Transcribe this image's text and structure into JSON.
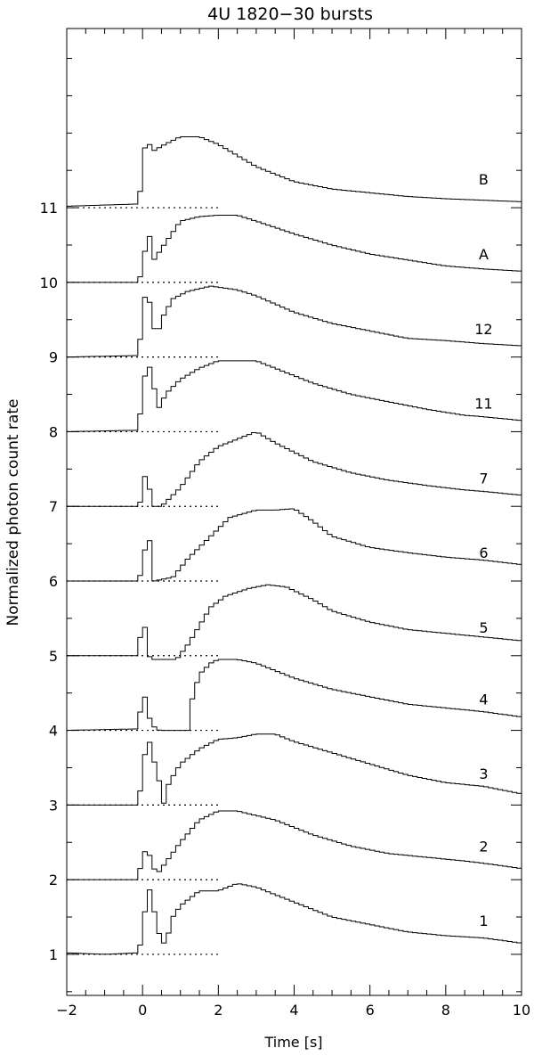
{
  "chart_data": {
    "type": "line",
    "title": "4U 1820−30 bursts",
    "xlabel": "Time [s]",
    "ylabel": "Normalized photon count rate",
    "xlim": [
      -2,
      10
    ],
    "ylim": [
      0.45,
      13.4
    ],
    "x_ticks": [
      -2,
      0,
      2,
      4,
      6,
      8,
      10
    ],
    "x_tick_labels": [
      "−2",
      "0",
      "2",
      "4",
      "6",
      "8",
      "10"
    ],
    "y_ticks": [
      1,
      2,
      3,
      4,
      5,
      6,
      7,
      8,
      9,
      10,
      11
    ],
    "y_tick_labels": [
      "1",
      "2",
      "3",
      "4",
      "5",
      "6",
      "7",
      "8",
      "9",
      "10",
      "11"
    ],
    "preburst_level_dotted": {
      "x_start": -2,
      "x_end": 2
    },
    "step": "histogram",
    "series": [
      {
        "name": "1",
        "baseline": 1,
        "label_pos": [
          9.0,
          1.45
        ],
        "points": [
          [
            -2,
            1.02
          ],
          [
            -1,
            1.0
          ],
          [
            -0.1,
            1.02
          ],
          [
            0.0,
            1.3
          ],
          [
            0.15,
            1.95
          ],
          [
            0.3,
            1.6
          ],
          [
            0.45,
            1.25
          ],
          [
            0.6,
            1.12
          ],
          [
            0.8,
            1.5
          ],
          [
            1.0,
            1.65
          ],
          [
            1.5,
            1.85
          ],
          [
            2.0,
            1.85
          ],
          [
            2.5,
            1.95
          ],
          [
            3.0,
            1.9
          ],
          [
            4.0,
            1.7
          ],
          [
            5.0,
            1.5
          ],
          [
            6.0,
            1.4
          ],
          [
            7.0,
            1.3
          ],
          [
            8.0,
            1.25
          ],
          [
            9.0,
            1.22
          ],
          [
            10.0,
            1.15
          ]
        ]
      },
      {
        "name": "2",
        "baseline": 2,
        "label_pos": [
          9.0,
          2.45
        ],
        "points": [
          [
            -2,
            2.0
          ],
          [
            -0.1,
            2.0
          ],
          [
            0.0,
            2.4
          ],
          [
            0.25,
            2.3
          ],
          [
            0.35,
            2.05
          ],
          [
            0.5,
            2.15
          ],
          [
            1.0,
            2.5
          ],
          [
            1.5,
            2.8
          ],
          [
            2.0,
            2.92
          ],
          [
            2.5,
            2.92
          ],
          [
            3.5,
            2.8
          ],
          [
            4.5,
            2.6
          ],
          [
            5.5,
            2.45
          ],
          [
            6.5,
            2.35
          ],
          [
            7.5,
            2.3
          ],
          [
            8.5,
            2.25
          ],
          [
            9.0,
            2.22
          ],
          [
            10.0,
            2.15
          ]
        ]
      },
      {
        "name": "3",
        "baseline": 3,
        "label_pos": [
          9.0,
          3.42
        ],
        "points": [
          [
            -2,
            3.0
          ],
          [
            -0.1,
            3.0
          ],
          [
            0.0,
            3.5
          ],
          [
            0.15,
            3.92
          ],
          [
            0.3,
            3.6
          ],
          [
            0.45,
            3.3
          ],
          [
            0.55,
            3.0
          ],
          [
            0.7,
            3.3
          ],
          [
            1.0,
            3.55
          ],
          [
            1.5,
            3.75
          ],
          [
            2.0,
            3.88
          ],
          [
            2.5,
            3.9
          ],
          [
            3.0,
            3.95
          ],
          [
            3.5,
            3.95
          ],
          [
            4.0,
            3.85
          ],
          [
            5.0,
            3.7
          ],
          [
            6.0,
            3.55
          ],
          [
            7.0,
            3.4
          ],
          [
            8.0,
            3.3
          ],
          [
            9.0,
            3.25
          ],
          [
            10.0,
            3.15
          ]
        ]
      },
      {
        "name": "4",
        "baseline": 4,
        "label_pos": [
          9.0,
          4.42
        ],
        "points": [
          [
            -2,
            4.0
          ],
          [
            -0.1,
            4.02
          ],
          [
            0.0,
            4.62
          ],
          [
            0.15,
            4.2
          ],
          [
            0.3,
            4.05
          ],
          [
            0.45,
            4.0
          ],
          [
            1.2,
            4.0
          ],
          [
            1.3,
            4.4
          ],
          [
            1.5,
            4.75
          ],
          [
            1.8,
            4.9
          ],
          [
            2.0,
            4.95
          ],
          [
            2.5,
            4.95
          ],
          [
            3.0,
            4.9
          ],
          [
            4.0,
            4.7
          ],
          [
            5.0,
            4.55
          ],
          [
            6.0,
            4.45
          ],
          [
            7.0,
            4.35
          ],
          [
            8.0,
            4.3
          ],
          [
            9.0,
            4.25
          ],
          [
            10.0,
            4.18
          ]
        ]
      },
      {
        "name": "5",
        "baseline": 5,
        "label_pos": [
          9.0,
          5.38
        ],
        "points": [
          [
            -2,
            5.0
          ],
          [
            -0.1,
            5.0
          ],
          [
            0.0,
            5.65
          ],
          [
            0.15,
            5.0
          ],
          [
            0.3,
            4.95
          ],
          [
            0.9,
            4.95
          ],
          [
            1.2,
            5.15
          ],
          [
            1.5,
            5.4
          ],
          [
            1.8,
            5.65
          ],
          [
            2.2,
            5.8
          ],
          [
            2.8,
            5.9
          ],
          [
            3.3,
            5.95
          ],
          [
            3.8,
            5.92
          ],
          [
            4.5,
            5.75
          ],
          [
            5.0,
            5.6
          ],
          [
            6.0,
            5.45
          ],
          [
            7.0,
            5.35
          ],
          [
            8.0,
            5.3
          ],
          [
            9.0,
            5.25
          ],
          [
            10.0,
            5.2
          ]
        ]
      },
      {
        "name": "6",
        "baseline": 6,
        "label_pos": [
          9.0,
          6.38
        ],
        "points": [
          [
            -2,
            6.0
          ],
          [
            -0.1,
            6.0
          ],
          [
            0.0,
            6.2
          ],
          [
            0.15,
            6.72
          ],
          [
            0.3,
            6.0
          ],
          [
            0.8,
            6.05
          ],
          [
            1.2,
            6.3
          ],
          [
            1.8,
            6.6
          ],
          [
            2.3,
            6.85
          ],
          [
            3.0,
            6.95
          ],
          [
            3.5,
            6.95
          ],
          [
            4.0,
            6.97
          ],
          [
            4.5,
            6.8
          ],
          [
            5.0,
            6.6
          ],
          [
            6.0,
            6.45
          ],
          [
            7.0,
            6.38
          ],
          [
            8.0,
            6.32
          ],
          [
            9.0,
            6.28
          ],
          [
            10.0,
            6.22
          ]
        ]
      },
      {
        "name": "7",
        "baseline": 7,
        "label_pos": [
          9.0,
          7.38
        ],
        "points": [
          [
            -2,
            7.0
          ],
          [
            -0.1,
            7.0
          ],
          [
            0.0,
            7.15
          ],
          [
            0.1,
            7.55
          ],
          [
            0.25,
            7.0
          ],
          [
            0.5,
            7.0
          ],
          [
            1.0,
            7.25
          ],
          [
            1.5,
            7.6
          ],
          [
            2.0,
            7.8
          ],
          [
            2.5,
            7.9
          ],
          [
            3.0,
            8.0
          ],
          [
            3.5,
            7.85
          ],
          [
            4.5,
            7.6
          ],
          [
            5.5,
            7.45
          ],
          [
            6.5,
            7.35
          ],
          [
            7.5,
            7.28
          ],
          [
            8.5,
            7.22
          ],
          [
            9.0,
            7.2
          ],
          [
            10.0,
            7.15
          ]
        ]
      },
      {
        "name": "11",
        "baseline": 8,
        "label_pos": [
          9.0,
          8.38
        ],
        "points": [
          [
            -2,
            8.0
          ],
          [
            -0.1,
            8.02
          ],
          [
            0.0,
            8.6
          ],
          [
            0.15,
            8.95
          ],
          [
            0.3,
            8.6
          ],
          [
            0.45,
            8.3
          ],
          [
            0.6,
            8.5
          ],
          [
            1.0,
            8.7
          ],
          [
            1.5,
            8.85
          ],
          [
            2.0,
            8.95
          ],
          [
            2.5,
            8.95
          ],
          [
            3.0,
            8.95
          ],
          [
            3.5,
            8.85
          ],
          [
            4.5,
            8.65
          ],
          [
            5.5,
            8.5
          ],
          [
            6.5,
            8.4
          ],
          [
            7.5,
            8.3
          ],
          [
            8.5,
            8.22
          ],
          [
            9.0,
            8.2
          ],
          [
            10.0,
            8.15
          ]
        ]
      },
      {
        "name": "12",
        "baseline": 9,
        "label_pos": [
          9.0,
          9.38
        ],
        "points": [
          [
            -2,
            9.0
          ],
          [
            -0.1,
            9.02
          ],
          [
            0.0,
            9.6
          ],
          [
            0.1,
            9.92
          ],
          [
            0.25,
            9.6
          ],
          [
            0.35,
            9.25
          ],
          [
            0.55,
            9.55
          ],
          [
            0.8,
            9.78
          ],
          [
            1.2,
            9.88
          ],
          [
            1.8,
            9.95
          ],
          [
            2.5,
            9.9
          ],
          [
            3.0,
            9.82
          ],
          [
            4.0,
            9.6
          ],
          [
            5.0,
            9.45
          ],
          [
            6.0,
            9.35
          ],
          [
            7.0,
            9.25
          ],
          [
            8.0,
            9.22
          ],
          [
            9.0,
            9.18
          ],
          [
            10.0,
            9.15
          ]
        ]
      },
      {
        "name": "A",
        "baseline": 10,
        "label_pos": [
          9.0,
          10.38
        ],
        "points": [
          [
            -2,
            10.0
          ],
          [
            -0.1,
            10.0
          ],
          [
            0.0,
            10.2
          ],
          [
            0.15,
            10.72
          ],
          [
            0.3,
            10.3
          ],
          [
            0.5,
            10.45
          ],
          [
            1.0,
            10.82
          ],
          [
            1.5,
            10.88
          ],
          [
            2.0,
            10.9
          ],
          [
            2.5,
            10.9
          ],
          [
            3.0,
            10.82
          ],
          [
            4.0,
            10.65
          ],
          [
            5.0,
            10.5
          ],
          [
            6.0,
            10.38
          ],
          [
            7.0,
            10.3
          ],
          [
            8.0,
            10.22
          ],
          [
            9.0,
            10.18
          ],
          [
            10.0,
            10.15
          ]
        ]
      },
      {
        "name": "B",
        "baseline": 11,
        "label_pos": [
          9.0,
          11.38
        ],
        "points": [
          [
            -2,
            11.02
          ],
          [
            -0.1,
            11.05
          ],
          [
            0.0,
            11.5
          ],
          [
            0.1,
            11.98
          ],
          [
            0.25,
            11.75
          ],
          [
            0.6,
            11.85
          ],
          [
            1.0,
            11.95
          ],
          [
            1.5,
            11.95
          ],
          [
            2.0,
            11.85
          ],
          [
            2.5,
            11.7
          ],
          [
            3.0,
            11.55
          ],
          [
            4.0,
            11.35
          ],
          [
            5.0,
            11.25
          ],
          [
            6.0,
            11.2
          ],
          [
            7.0,
            11.15
          ],
          [
            8.0,
            11.12
          ],
          [
            9.0,
            11.1
          ],
          [
            10.0,
            11.08
          ]
        ]
      }
    ]
  }
}
